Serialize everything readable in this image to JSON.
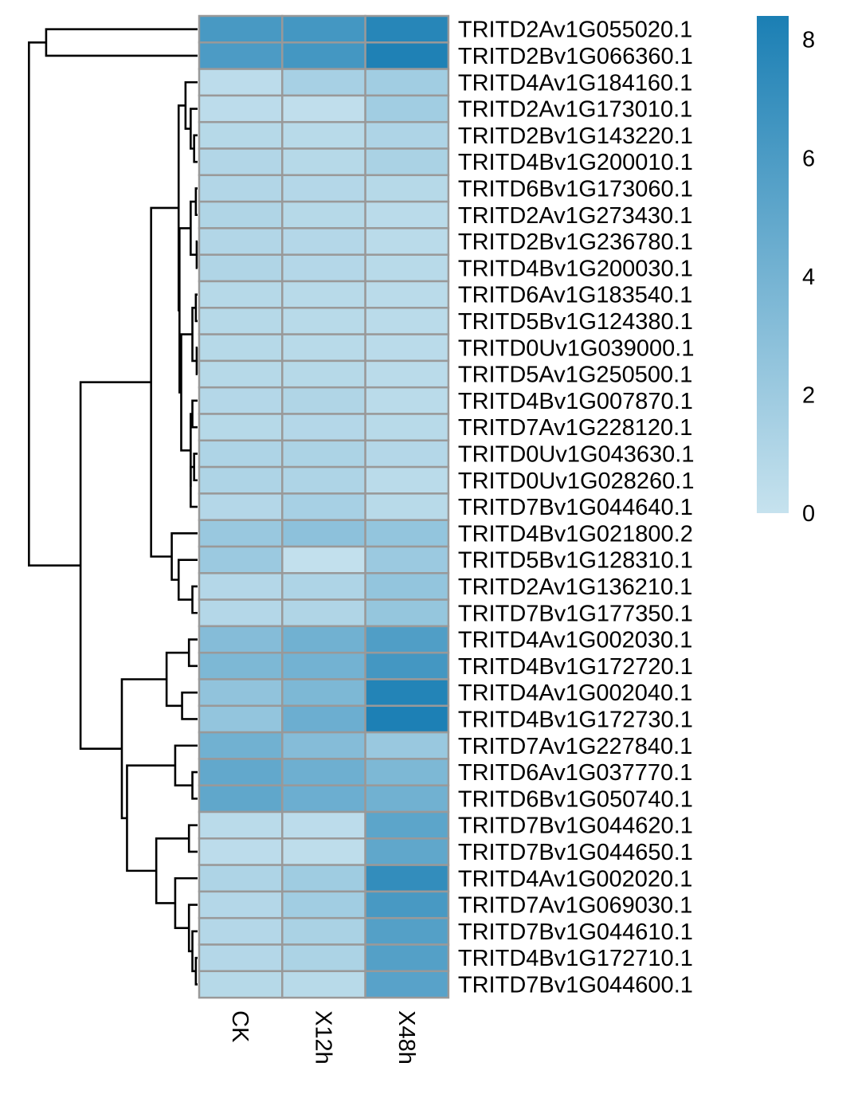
{
  "chart_data": {
    "type": "heatmap",
    "columns": [
      "CK",
      "X12h",
      "X48h"
    ],
    "rows": [
      "TRITD2Av1G055020.1",
      "TRITD2Bv1G066360.1",
      "TRITD4Av1G184160.1",
      "TRITD2Av1G173010.1",
      "TRITD2Bv1G143220.1",
      "TRITD4Bv1G200010.1",
      "TRITD6Bv1G173060.1",
      "TRITD2Av1G273430.1",
      "TRITD2Bv1G236780.1",
      "TRITD4Bv1G200030.1",
      "TRITD6Av1G183540.1",
      "TRITD5Bv1G124380.1",
      "TRITD0Uv1G039000.1",
      "TRITD5Av1G250500.1",
      "TRITD4Bv1G007870.1",
      "TRITD7Av1G228120.1",
      "TRITD0Uv1G043630.1",
      "TRITD0Uv1G028260.1",
      "TRITD7Bv1G044640.1",
      "TRITD4Bv1G021800.2",
      "TRITD5Bv1G128310.1",
      "TRITD2Av1G136210.1",
      "TRITD7Bv1G177350.1",
      "TRITD4Av1G002030.1",
      "TRITD4Bv1G172720.1",
      "TRITD4Av1G002040.1",
      "TRITD4Bv1G172730.1",
      "TRITD7Av1G227840.1",
      "TRITD6Av1G037770.1",
      "TRITD6Bv1G050740.1",
      "TRITD7Bv1G044620.1",
      "TRITD7Bv1G044650.1",
      "TRITD4Av1G002020.1",
      "TRITD7Av1G069030.1",
      "TRITD7Bv1G044610.1",
      "TRITD4Bv1G172710.1",
      "TRITD7Bv1G044600.1"
    ],
    "values": [
      [
        6.2,
        6.4,
        7.8
      ],
      [
        6.0,
        6.4,
        8.2
      ],
      [
        0.5,
        1.5,
        1.8
      ],
      [
        0.5,
        0.3,
        1.8
      ],
      [
        0.8,
        0.7,
        1.2
      ],
      [
        1.0,
        0.8,
        1.4
      ],
      [
        1.0,
        0.9,
        0.8
      ],
      [
        1.1,
        0.8,
        0.6
      ],
      [
        1.0,
        0.9,
        0.6
      ],
      [
        1.1,
        0.9,
        0.7
      ],
      [
        0.8,
        0.7,
        0.6
      ],
      [
        0.8,
        0.7,
        0.6
      ],
      [
        0.8,
        0.7,
        0.6
      ],
      [
        0.8,
        0.8,
        0.6
      ],
      [
        0.9,
        1.1,
        0.6
      ],
      [
        0.8,
        0.9,
        0.7
      ],
      [
        1.2,
        1.3,
        0.9
      ],
      [
        1.2,
        1.2,
        0.6
      ],
      [
        0.9,
        1.5,
        0.7
      ],
      [
        2.2,
        2.8,
        2.5
      ],
      [
        2.1,
        0.2,
        2.1
      ],
      [
        0.9,
        1.2,
        2.5
      ],
      [
        0.9,
        1.1,
        2.4
      ],
      [
        3.2,
        4.2,
        5.8
      ],
      [
        3.6,
        4.1,
        6.4
      ],
      [
        2.6,
        3.6,
        8.0
      ],
      [
        2.5,
        4.4,
        8.3
      ],
      [
        4.2,
        3.2,
        2.2
      ],
      [
        4.9,
        4.3,
        3.6
      ],
      [
        5.0,
        4.4,
        4.2
      ],
      [
        0.6,
        0.5,
        5.2
      ],
      [
        0.5,
        0.4,
        5.0
      ],
      [
        1.2,
        1.9,
        7.2
      ],
      [
        0.9,
        1.8,
        6.2
      ],
      [
        0.9,
        1.4,
        5.6
      ],
      [
        0.9,
        1.3,
        5.6
      ],
      [
        0.8,
        0.7,
        5.4
      ]
    ],
    "color_scale": {
      "min": 0,
      "max": 8.4,
      "low_color": "#c6e2ee",
      "high_color": "#1b7fb4",
      "legend_ticks": [
        0,
        2,
        4,
        6,
        8
      ]
    },
    "row_dendrogram": true,
    "column_labels_rotated": true
  }
}
